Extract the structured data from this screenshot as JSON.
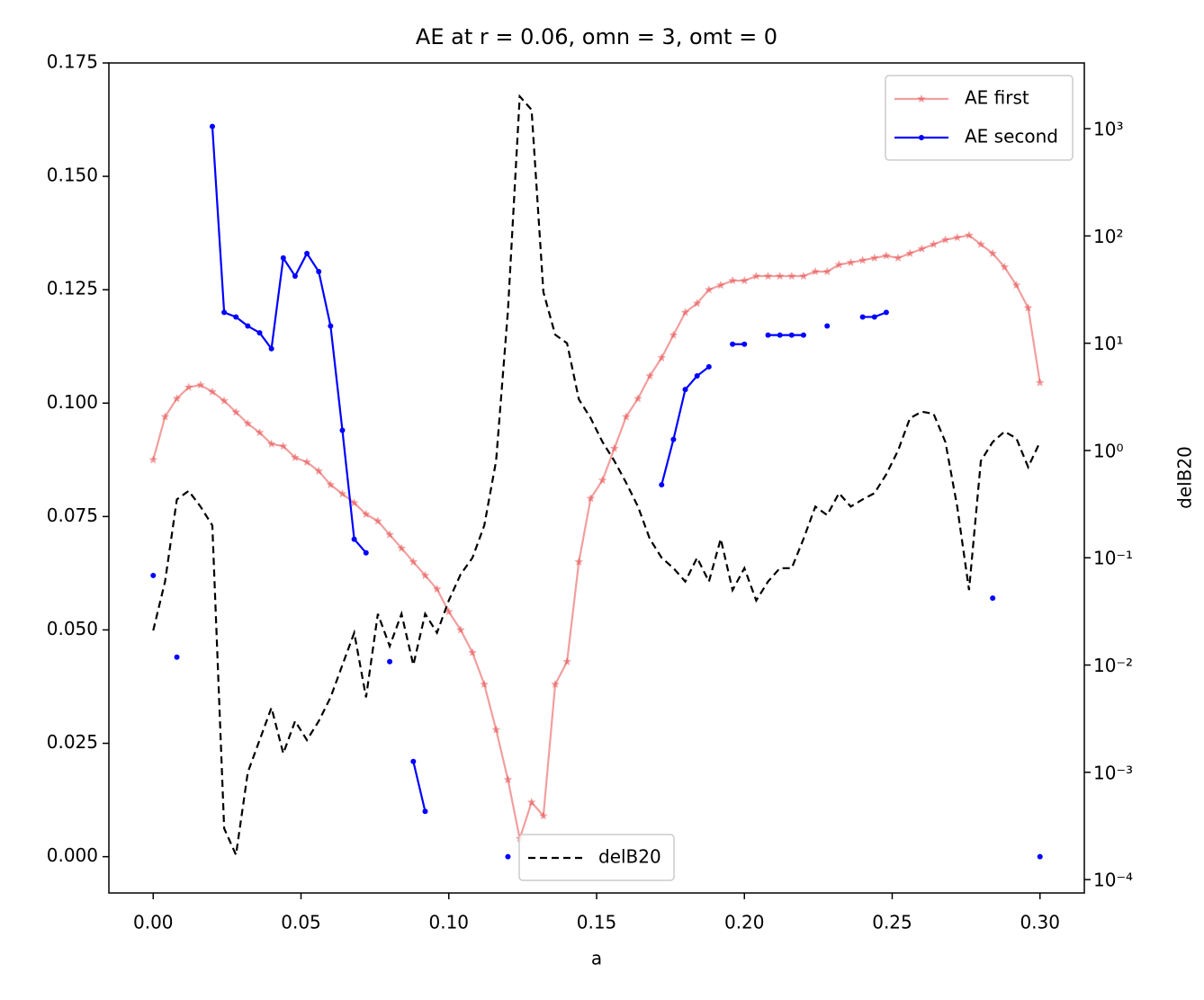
{
  "chart_data": {
    "type": "line",
    "title": "AE at r = 0.06, omn = 3, omt = 0",
    "xlabel": "a",
    "y2label": "delB20",
    "x": [
      0,
      0.004,
      0.008,
      0.012,
      0.016,
      0.02,
      0.024,
      0.028,
      0.032,
      0.036,
      0.04,
      0.044,
      0.048,
      0.052,
      0.056,
      0.06,
      0.064,
      0.068,
      0.072,
      0.076,
      0.08,
      0.084,
      0.088,
      0.092,
      0.096,
      0.1,
      0.104,
      0.108,
      0.112,
      0.116,
      0.12,
      0.124,
      0.128,
      0.132,
      0.136,
      0.14,
      0.144,
      0.148,
      0.152,
      0.156,
      0.16,
      0.164,
      0.168,
      0.172,
      0.176,
      0.18,
      0.184,
      0.188,
      0.192,
      0.196,
      0.2,
      0.204,
      0.208,
      0.212,
      0.216,
      0.22,
      0.224,
      0.228,
      0.232,
      0.236,
      0.24,
      0.244,
      0.248,
      0.252,
      0.256,
      0.26,
      0.264,
      0.268,
      0.272,
      0.276,
      0.28,
      0.284,
      0.288,
      0.292,
      0.296,
      0.3
    ],
    "series": [
      {
        "name": "AE first",
        "color": "#e84f4f",
        "marker": "star",
        "linestyle": "solid",
        "alpha": 0.55,
        "values": [
          0.0875,
          0.097,
          0.101,
          0.1035,
          0.104,
          0.1025,
          0.1005,
          0.098,
          0.0955,
          0.0935,
          0.091,
          0.0905,
          0.088,
          0.087,
          0.085,
          0.082,
          0.08,
          0.078,
          0.0755,
          0.074,
          0.071,
          0.068,
          0.065,
          0.062,
          0.059,
          0.054,
          0.05,
          0.045,
          0.038,
          0.028,
          0.017,
          0.004,
          0.012,
          0.009,
          0.038,
          0.043,
          0.065,
          0.079,
          0.083,
          0.09,
          0.097,
          0.101,
          0.106,
          0.11,
          0.115,
          0.12,
          0.122,
          0.125,
          0.126,
          0.127,
          0.127,
          0.128,
          0.128,
          0.128,
          0.128,
          0.128,
          0.129,
          0.129,
          0.1305,
          0.131,
          0.1315,
          0.132,
          0.1325,
          0.132,
          0.133,
          0.134,
          0.135,
          0.136,
          0.1365,
          0.137,
          0.135,
          0.133,
          0.13,
          0.126,
          0.121,
          0.1045
        ]
      },
      {
        "name": "AE second",
        "color": "#0000ff",
        "marker": "dot",
        "linestyle": "solid",
        "alpha": 1,
        "values": [
          0.062,
          null,
          0.044,
          null,
          null,
          0.161,
          0.12,
          0.119,
          0.117,
          0.1155,
          0.112,
          0.132,
          0.128,
          0.133,
          0.129,
          0.117,
          0.094,
          0.07,
          0.067,
          null,
          0.043,
          null,
          0.021,
          0.01,
          null,
          null,
          null,
          null,
          null,
          null,
          0.0,
          null,
          null,
          null,
          null,
          null,
          null,
          null,
          null,
          null,
          null,
          null,
          null,
          0.082,
          0.092,
          0.103,
          0.106,
          0.108,
          null,
          0.113,
          0.113,
          null,
          0.115,
          0.115,
          0.115,
          0.115,
          null,
          0.117,
          null,
          null,
          0.119,
          0.119,
          0.12,
          null,
          null,
          null,
          null,
          null,
          null,
          null,
          null,
          0.057,
          null,
          null,
          null,
          0.0
        ]
      },
      {
        "name": "delB20",
        "color": "#000000",
        "marker": "none",
        "linestyle": "dashed",
        "alpha": 1,
        "axis": "y2",
        "values": [
          0.021,
          0.06,
          0.35,
          0.42,
          0.3,
          0.2,
          0.0003,
          0.00017,
          0.001,
          0.002,
          0.004,
          0.0015,
          0.003,
          0.002,
          0.003,
          0.005,
          0.01,
          0.02,
          0.005,
          0.03,
          0.015,
          0.03,
          0.01,
          0.03,
          0.02,
          0.04,
          0.07,
          0.1,
          0.2,
          0.8,
          20,
          2000,
          1500,
          30,
          12,
          10,
          3,
          2,
          1.2,
          0.8,
          0.5,
          0.3,
          0.15,
          0.1,
          0.08,
          0.06,
          0.1,
          0.06,
          0.15,
          0.05,
          0.08,
          0.04,
          0.06,
          0.08,
          0.08,
          0.15,
          0.3,
          0.25,
          0.4,
          0.3,
          0.35,
          0.4,
          0.6,
          1.0,
          2.0,
          2.3,
          2.2,
          1.2,
          0.3,
          0.05,
          0.8,
          1.2,
          1.5,
          1.3,
          0.7,
          1.2
        ]
      }
    ],
    "xlim": [
      -0.015,
      0.315
    ],
    "xticks": [
      {
        "value": 0,
        "label": "0.00"
      },
      {
        "value": 0.05,
        "label": "0.05"
      },
      {
        "value": 0.1,
        "label": "0.10"
      },
      {
        "value": 0.15,
        "label": "0.15"
      },
      {
        "value": 0.2,
        "label": "0.20"
      },
      {
        "value": 0.25,
        "label": "0.25"
      },
      {
        "value": 0.3,
        "label": "0.30"
      }
    ],
    "ylim": [
      -0.008,
      0.175
    ],
    "yticks": [
      {
        "value": 0,
        "label": "0.000"
      },
      {
        "value": 0.025,
        "label": "0.025"
      },
      {
        "value": 0.05,
        "label": "0.050"
      },
      {
        "value": 0.075,
        "label": "0.075"
      },
      {
        "value": 0.1,
        "label": "0.100"
      },
      {
        "value": 0.125,
        "label": "0.125"
      },
      {
        "value": 0.15,
        "label": "0.150"
      },
      {
        "value": 0.175,
        "label": "0.175"
      }
    ],
    "y2lim": [
      7.5e-05,
      4100
    ],
    "y2scale": "log",
    "y2ticks": [
      {
        "value": 0.0001,
        "label": "10⁻⁴"
      },
      {
        "value": 0.001,
        "label": "10⁻³"
      },
      {
        "value": 0.01,
        "label": "10⁻²"
      },
      {
        "value": 0.1,
        "label": "10⁻¹"
      },
      {
        "value": 1,
        "label": "10⁰"
      },
      {
        "value": 10,
        "label": "10¹"
      },
      {
        "value": 100,
        "label": "10²"
      },
      {
        "value": 1000,
        "label": "10³"
      }
    ],
    "grid": false,
    "legend": "upper right",
    "y2legend": "lower center"
  }
}
